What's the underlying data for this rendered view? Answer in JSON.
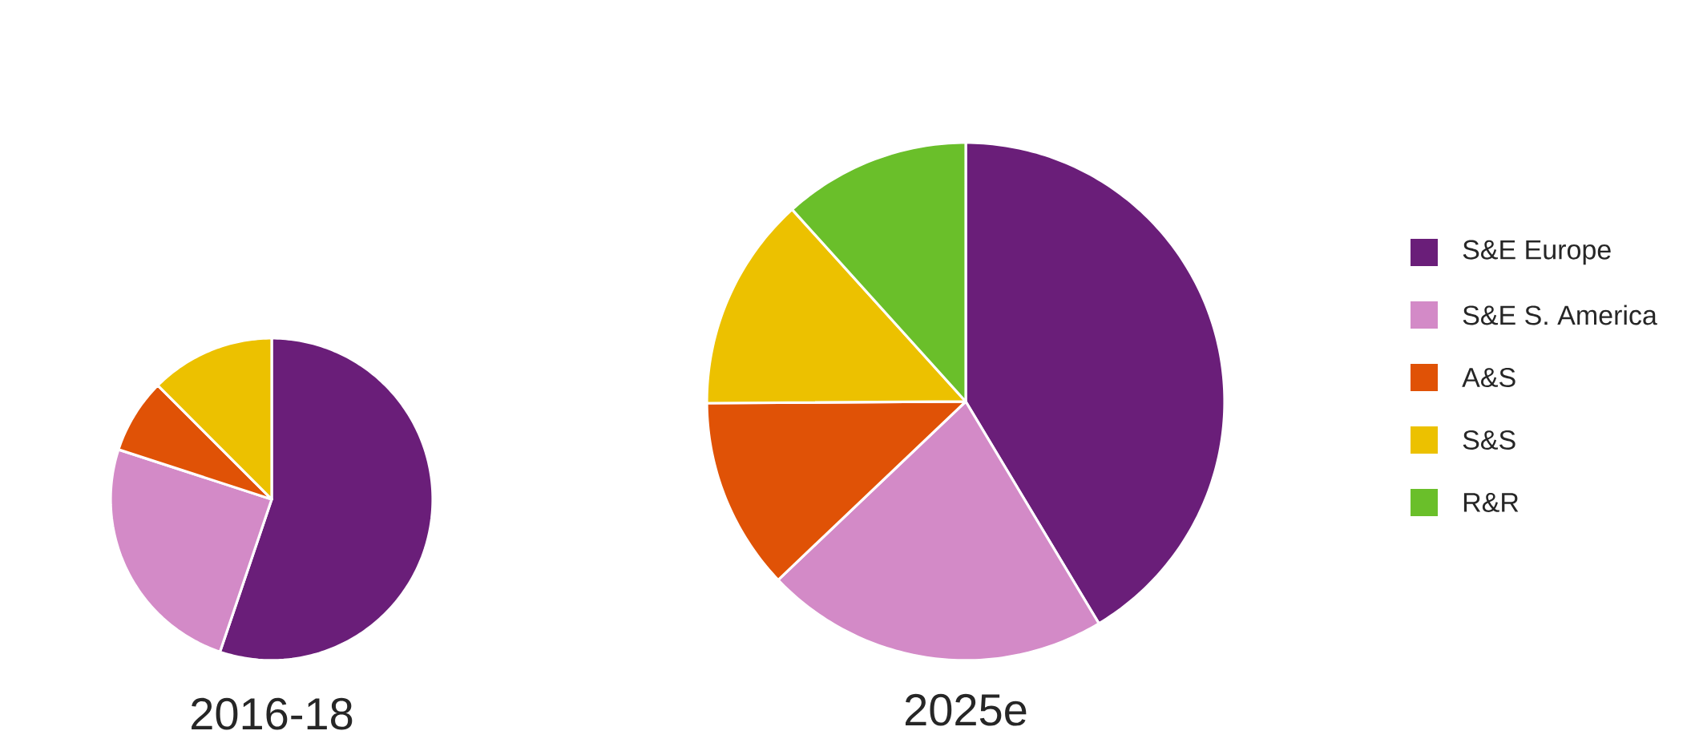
{
  "chart_data": {
    "type": "pie",
    "categories": [
      "S&E Europe",
      "S&E S. America",
      "A&S",
      "S&S",
      "R&R"
    ],
    "colors": [
      "#6a1e79",
      "#d38ac7",
      "#e05206",
      "#ecc100",
      "#6abf2a"
    ],
    "legend": "right",
    "series": [
      {
        "name": "2016-18",
        "values": [
          55.2,
          24.8,
          7.5,
          12.5,
          0
        ]
      },
      {
        "name": "2025e",
        "values": [
          41.4,
          21.5,
          12.0,
          13.4,
          11.7
        ]
      }
    ]
  }
}
